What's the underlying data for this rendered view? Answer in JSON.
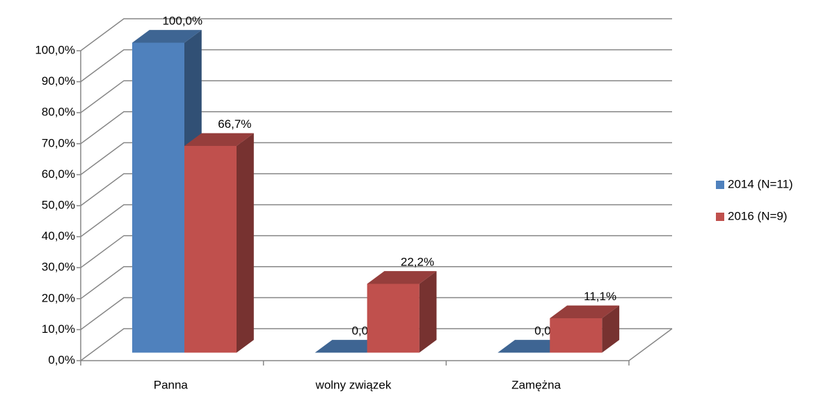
{
  "chart_data": {
    "type": "bar3d",
    "categories": [
      "Panna",
      "wolny związek",
      "Zamężna"
    ],
    "series": [
      {
        "name": "2014 (N=11)",
        "color": "#4f81bd",
        "values": [
          100.0,
          0.0,
          0.0
        ],
        "value_labels": [
          "100,0%",
          "0,0%",
          "0,0%"
        ]
      },
      {
        "name": "2016 (N=9)",
        "color": "#c0504d",
        "values": [
          66.7,
          22.2,
          11.1
        ],
        "value_labels": [
          "66,7%",
          "22,2%",
          "11,1%"
        ]
      }
    ],
    "ylim": [
      0,
      100
    ],
    "yticks": [
      {
        "value": 0,
        "label": "0,0%"
      },
      {
        "value": 10,
        "label": "10,0%"
      },
      {
        "value": 20,
        "label": "20,0%"
      },
      {
        "value": 30,
        "label": "30,0%"
      },
      {
        "value": 40,
        "label": "40,0%"
      },
      {
        "value": 50,
        "label": "50,0%"
      },
      {
        "value": 60,
        "label": "60,0%"
      },
      {
        "value": 70,
        "label": "70,0%"
      },
      {
        "value": 80,
        "label": "80,0%"
      },
      {
        "value": 90,
        "label": "90,0%"
      },
      {
        "value": 100,
        "label": "100,0%"
      }
    ],
    "grid": true,
    "legend": "right"
  }
}
